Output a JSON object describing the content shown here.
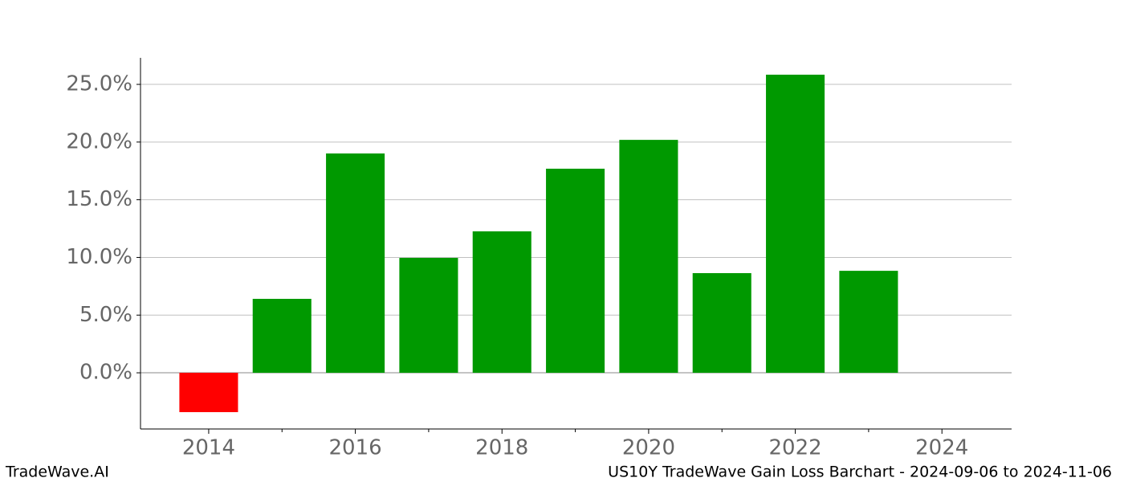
{
  "chart_data": {
    "type": "bar",
    "x": [
      2014,
      2015,
      2016,
      2017,
      2018,
      2019,
      2020,
      2021,
      2022,
      2023
    ],
    "values": [
      -3.41,
      6.41,
      19.01,
      9.96,
      12.26,
      17.69,
      20.19,
      8.64,
      25.84,
      8.84
    ],
    "positive_color": "#009900",
    "negative_color": "#ff0000",
    "xlim": [
      2013.07,
      2024.95
    ],
    "xticks": [
      2014,
      2016,
      2018,
      2020,
      2022,
      2024
    ],
    "xminor_ticks": [
      2015,
      2017,
      2019,
      2021,
      2023
    ],
    "ylim": [
      -4.87,
      27.3
    ],
    "yticks": [
      {
        "value": 0,
        "label": "0.0%"
      },
      {
        "value": 5,
        "label": "5.0%"
      },
      {
        "value": 10,
        "label": "10.0%"
      },
      {
        "value": 15,
        "label": "15.0%"
      },
      {
        "value": 20,
        "label": "20.0%"
      },
      {
        "value": 25,
        "label": "25.0%"
      }
    ],
    "grid": true,
    "footer_left": "TradeWave.AI",
    "footer_right": "US10Y TradeWave Gain Loss Barchart - 2024-09-06 to 2024-11-06"
  }
}
